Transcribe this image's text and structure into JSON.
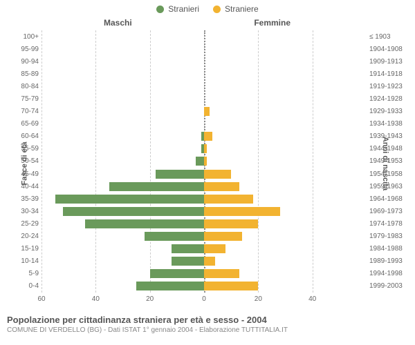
{
  "legend": {
    "male": {
      "label": "Stranieri",
      "color": "#6a9a5b"
    },
    "female": {
      "label": "Straniere",
      "color": "#f2b331"
    }
  },
  "columns": {
    "left": "Maschi",
    "right": "Femmine"
  },
  "y_axis": {
    "left_label": "Fasce di età",
    "right_label": "Anni di nascita"
  },
  "chart": {
    "type": "population-pyramid",
    "xlim": 60,
    "xticks_left": [
      60,
      40,
      20,
      0
    ],
    "xticks_right": [
      0,
      20,
      40
    ],
    "grid_color": "#cccccc",
    "background": "#ffffff",
    "bar_color_left": "#6a9a5b",
    "bar_color_right": "#f2b331",
    "rows": [
      {
        "age": "100+",
        "birth": "≤ 1903",
        "m": 0,
        "f": 0
      },
      {
        "age": "95-99",
        "birth": "1904-1908",
        "m": 0,
        "f": 0
      },
      {
        "age": "90-94",
        "birth": "1909-1913",
        "m": 0,
        "f": 0
      },
      {
        "age": "85-89",
        "birth": "1914-1918",
        "m": 0,
        "f": 0
      },
      {
        "age": "80-84",
        "birth": "1919-1923",
        "m": 0,
        "f": 0
      },
      {
        "age": "75-79",
        "birth": "1924-1928",
        "m": 0,
        "f": 0
      },
      {
        "age": "70-74",
        "birth": "1929-1933",
        "m": 0,
        "f": 2
      },
      {
        "age": "65-69",
        "birth": "1934-1938",
        "m": 0,
        "f": 0
      },
      {
        "age": "60-64",
        "birth": "1939-1943",
        "m": 1,
        "f": 3
      },
      {
        "age": "55-59",
        "birth": "1944-1948",
        "m": 1,
        "f": 1
      },
      {
        "age": "50-54",
        "birth": "1949-1953",
        "m": 3,
        "f": 1
      },
      {
        "age": "45-49",
        "birth": "1954-1958",
        "m": 18,
        "f": 10
      },
      {
        "age": "40-44",
        "birth": "1959-1963",
        "m": 35,
        "f": 13
      },
      {
        "age": "35-39",
        "birth": "1964-1968",
        "m": 55,
        "f": 18
      },
      {
        "age": "30-34",
        "birth": "1969-1973",
        "m": 52,
        "f": 28
      },
      {
        "age": "25-29",
        "birth": "1974-1978",
        "m": 44,
        "f": 20
      },
      {
        "age": "20-24",
        "birth": "1979-1983",
        "m": 22,
        "f": 14
      },
      {
        "age": "15-19",
        "birth": "1984-1988",
        "m": 12,
        "f": 8
      },
      {
        "age": "10-14",
        "birth": "1989-1993",
        "m": 12,
        "f": 4
      },
      {
        "age": "5-9",
        "birth": "1994-1998",
        "m": 20,
        "f": 13
      },
      {
        "age": "0-4",
        "birth": "1999-2003",
        "m": 25,
        "f": 20
      }
    ]
  },
  "footer": {
    "title": "Popolazione per cittadinanza straniera per età e sesso - 2004",
    "subtitle": "COMUNE DI VERDELLO (BG) - Dati ISTAT 1° gennaio 2004 - Elaborazione TUTTITALIA.IT"
  }
}
